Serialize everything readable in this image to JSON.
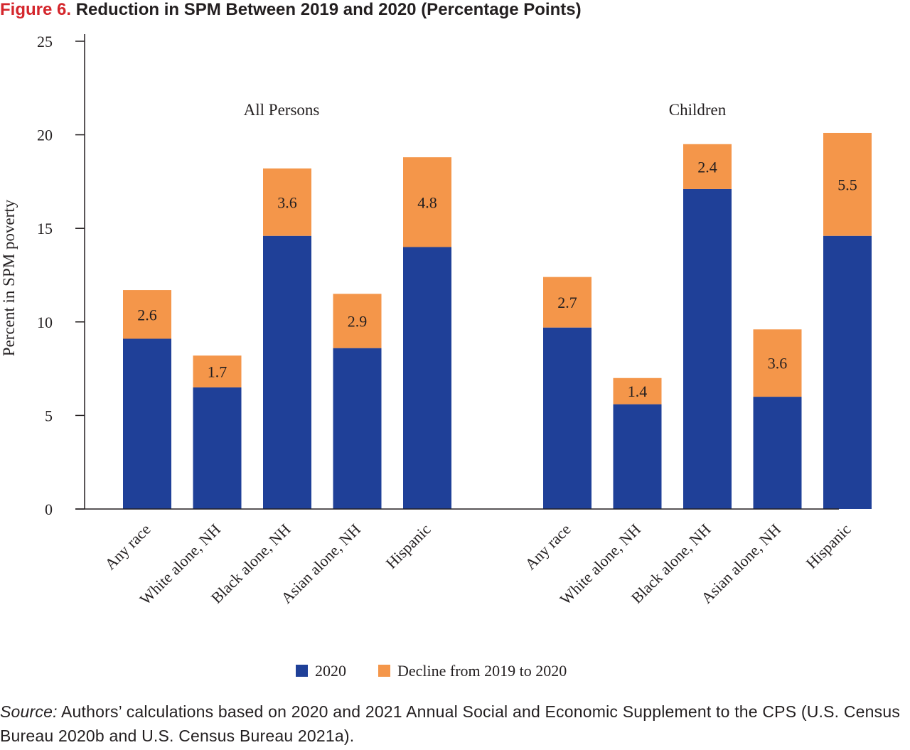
{
  "figure": {
    "number": "Figure 6.",
    "title": "Reduction in SPM Between 2019 and 2020 (Percentage Points)"
  },
  "source": {
    "label": "Source:",
    "text": "Authors’ calculations based on 2020 and 2021 Annual Social and Economic Supplement to the CPS (U.S. Census Bureau 2020b and U.S. Census Bureau 2021a)."
  },
  "chart_data": {
    "type": "bar",
    "stacked": true,
    "ylabel": "Percent in SPM poverty",
    "ylim": [
      0,
      25
    ],
    "yticks": [
      0,
      5,
      10,
      15,
      20,
      25
    ],
    "grid": false,
    "legend_position": "bottom",
    "colors": {
      "2020": "#1f4098",
      "decline": "#f4964a"
    },
    "groups": [
      {
        "label": "All Persons",
        "categories": [
          "Any race",
          "White alone, NH",
          "Black alone, NH",
          "Asian alone, NH",
          "Hispanic"
        ],
        "series": [
          {
            "name": "2020",
            "values": [
              9.1,
              6.5,
              14.6,
              8.6,
              14.0
            ]
          },
          {
            "name": "Decline from 2019 to 2020",
            "values": [
              2.6,
              1.7,
              3.6,
              2.9,
              4.8
            ]
          }
        ],
        "data_labels": [
          "2.6",
          "1.7",
          "3.6",
          "2.9",
          "4.8"
        ]
      },
      {
        "label": "Children",
        "categories": [
          "Any race",
          "White alone, NH",
          "Black alone, NH",
          "Asian alone, NH",
          "Hispanic"
        ],
        "series": [
          {
            "name": "2020",
            "values": [
              9.7,
              5.6,
              17.1,
              6.0,
              14.6
            ]
          },
          {
            "name": "Decline from 2019 to 2020",
            "values": [
              2.7,
              1.4,
              2.4,
              3.6,
              5.5
            ]
          }
        ],
        "data_labels": [
          "2.7",
          "1.4",
          "2.4",
          "3.6",
          "5.5"
        ]
      }
    ],
    "legend": [
      {
        "name": "2020",
        "color": "#1f4098"
      },
      {
        "name": "Decline from 2019 to 2020",
        "color": "#f4964a"
      }
    ]
  }
}
